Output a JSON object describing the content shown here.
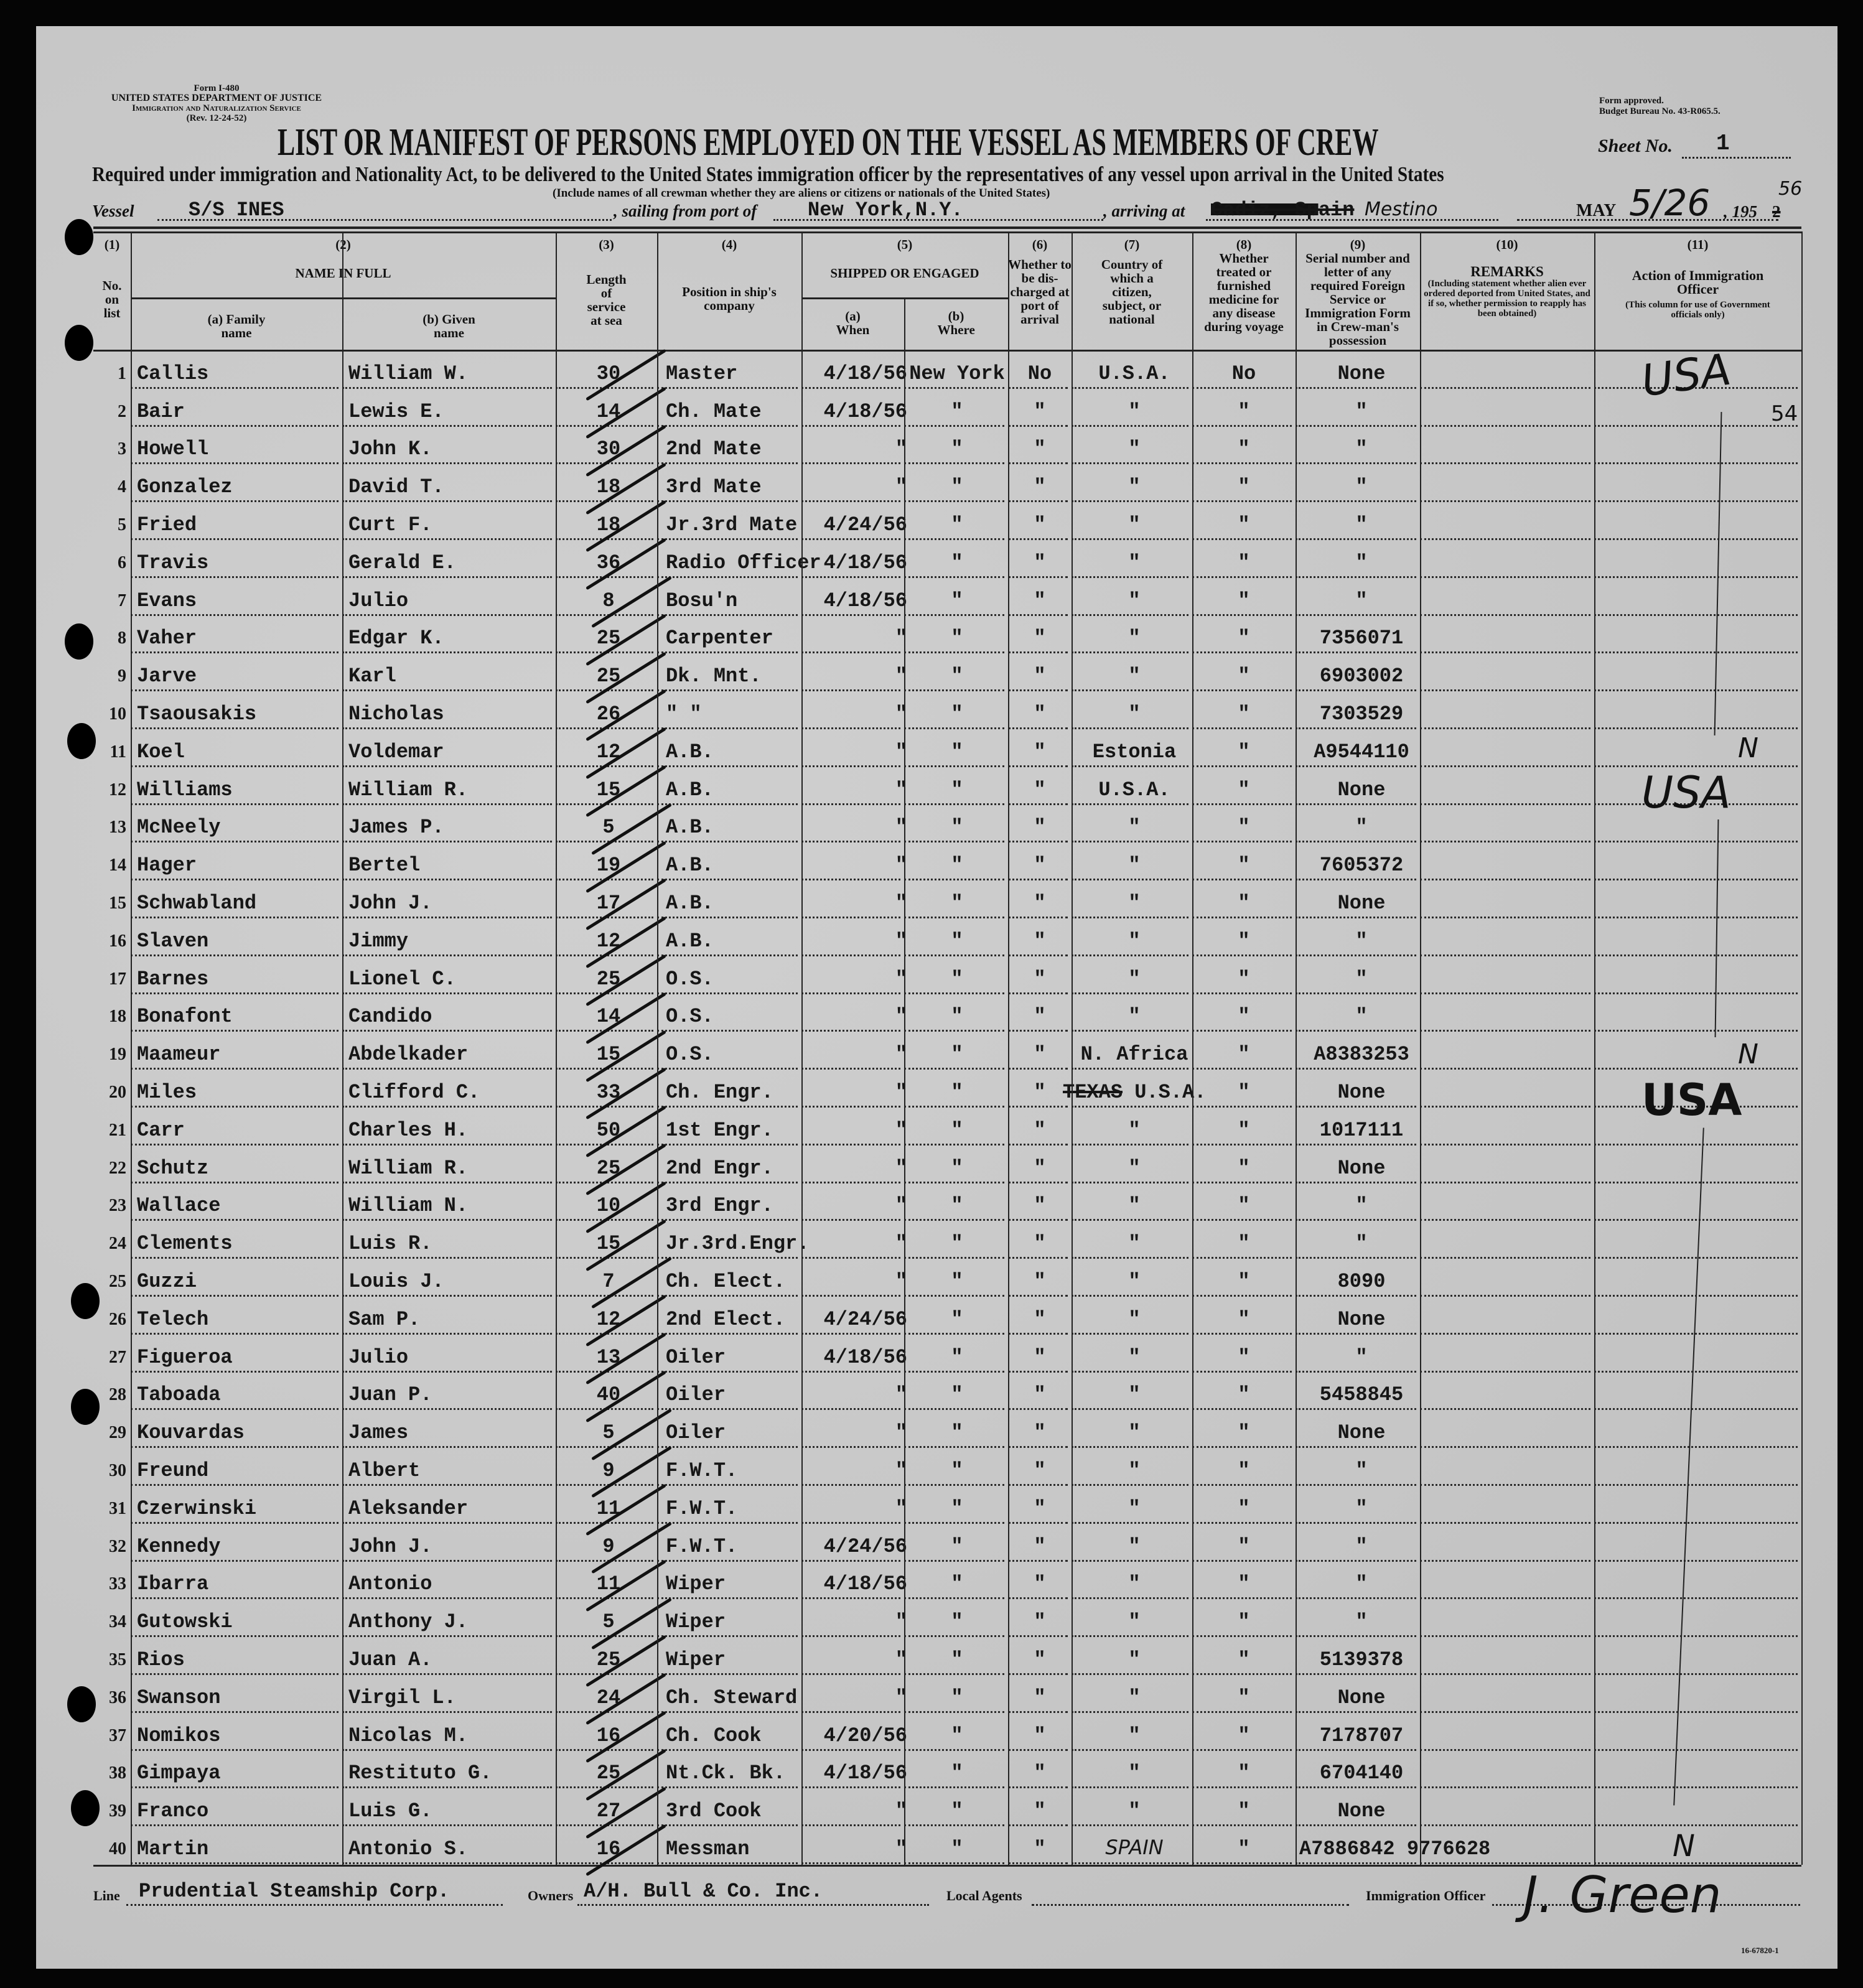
{
  "form": {
    "form_no": "Form I-480",
    "dept": "UNITED STATES DEPARTMENT OF JUSTICE",
    "service": "Immigration and Naturalization Service",
    "rev": "(Rev. 12-24-52)",
    "approved": "Form approved.",
    "budget": "Budget Bureau No. 43-R065.5.",
    "title": "LIST OR MANIFEST OF PERSONS EMPLOYED ON THE VESSEL AS MEMBERS OF CREW",
    "sheet_label": "Sheet No.",
    "sheet_no": "1",
    "subtitle": "Required under immigration and Nationality Act, to be delivered to the United States immigration officer by the representatives of any vessel upon arrival in the United States",
    "include_note": "(Include names of all crewman whether they are aliens or citizens or nationals of the United States)"
  },
  "voyage": {
    "vessel_label": "Vessel",
    "vessel": "S/S INES",
    "sailing_label": ", sailing from port of",
    "port": "New York,N.Y.",
    "arriving_label": ", arriving at",
    "arriving_struck": "Cadiz, Spain",
    "arriving_hand": "Mestino",
    "month": "MAY",
    "day_hand": "5/26",
    "year_prefix": ", 195",
    "year_typed": "2",
    "year_hand": "56"
  },
  "columns": {
    "c1_num": "(1)",
    "c1": "No. on list",
    "c2_num": "(2)",
    "c2": "NAME IN FULL",
    "c2a": "(a) Family name",
    "c2b": "(b) Given name",
    "c3_num": "(3)",
    "c3": "Length of service at sea",
    "c4_num": "(4)",
    "c4": "Position in ship's company",
    "c5_num": "(5)",
    "c5": "SHIPPED OR ENGAGED",
    "c5a": "(a) When",
    "c5b": "(b) Where",
    "c6_num": "(6)",
    "c6": "Whether to be dis-charged at port of arrival",
    "c7_num": "(7)",
    "c7": "Country of which a citizen, subject, or national",
    "c8_num": "(8)",
    "c8": "Whether treated or furnished medicine for any disease during voyage",
    "c9_num": "(9)",
    "c9": "Serial number and letter of any required Foreign Service or Immigration Form in Crew-man's possession",
    "c10_num": "(10)",
    "c10": "REMARKS",
    "c10_note": "(Including statement whether alien ever ordered deported from United States, and if so, whether permission to reapply has been obtained)",
    "c11_num": "(11)",
    "c11": "Action of Immigration Officer",
    "c11_note": "(This column for use of Government officials only)"
  },
  "rows": [
    {
      "no": "1",
      "family": "Callis",
      "given": "William W.",
      "length": "30",
      "position": "Master",
      "when": "4/18/56",
      "where": "New York",
      "disch": "No",
      "country": "U.S.A.",
      "treated": "No",
      "serial": "None"
    },
    {
      "no": "2",
      "family": "Bair",
      "given": "Lewis E.",
      "length": "14",
      "position": "Ch. Mate",
      "when": "4/18/56",
      "where": "\"",
      "disch": "\"",
      "country": "\"",
      "treated": "\"",
      "serial": "\""
    },
    {
      "no": "3",
      "family": "Howell",
      "given": "John K.",
      "length": "30",
      "position": "2nd Mate",
      "when": "\"",
      "where": "\"",
      "disch": "\"",
      "country": "\"",
      "treated": "\"",
      "serial": "\""
    },
    {
      "no": "4",
      "family": "Gonzalez",
      "given": "David T.",
      "length": "18",
      "position": "3rd Mate",
      "when": "\"",
      "where": "\"",
      "disch": "\"",
      "country": "\"",
      "treated": "\"",
      "serial": "\""
    },
    {
      "no": "5",
      "family": "Fried",
      "given": "Curt F.",
      "length": "18",
      "position": "Jr.3rd Mate",
      "when": "4/24/56",
      "where": "\"",
      "disch": "\"",
      "country": "\"",
      "treated": "\"",
      "serial": "\""
    },
    {
      "no": "6",
      "family": "Travis",
      "given": "Gerald E.",
      "length": "36",
      "position": "Radio Officer",
      "when": "4/18/56",
      "where": "\"",
      "disch": "\"",
      "country": "\"",
      "treated": "\"",
      "serial": "\""
    },
    {
      "no": "7",
      "family": "Evans",
      "given": "Julio",
      "length": "8",
      "position": "Bosu'n",
      "when": "4/18/56",
      "where": "\"",
      "disch": "\"",
      "country": "\"",
      "treated": "\"",
      "serial": "\""
    },
    {
      "no": "8",
      "family": "Vaher",
      "given": "Edgar K.",
      "length": "25",
      "position": "Carpenter",
      "when": "\"",
      "where": "\"",
      "disch": "\"",
      "country": "\"",
      "treated": "\"",
      "serial": "7356071"
    },
    {
      "no": "9",
      "family": "Jarve",
      "given": "Karl",
      "length": "25",
      "position": "Dk. Mnt.",
      "when": "\"",
      "where": "\"",
      "disch": "\"",
      "country": "\"",
      "treated": "\"",
      "serial": "6903002"
    },
    {
      "no": "10",
      "family": "Tsaousakis",
      "given": "Nicholas",
      "length": "26",
      "position": "\"   \"",
      "when": "\"",
      "where": "\"",
      "disch": "\"",
      "country": "\"",
      "treated": "\"",
      "serial": "7303529"
    },
    {
      "no": "11",
      "family": "Koel",
      "given": "Voldemar",
      "length": "12",
      "position": "A.B.",
      "when": "\"",
      "where": "\"",
      "disch": "\"",
      "country": "Estonia",
      "treated": "\"",
      "serial": "A9544110"
    },
    {
      "no": "12",
      "family": "Williams",
      "given": "William R.",
      "length": "15",
      "position": "A.B.",
      "when": "\"",
      "where": "\"",
      "disch": "\"",
      "country": "U.S.A.",
      "treated": "\"",
      "serial": "None"
    },
    {
      "no": "13",
      "family": "McNeely",
      "given": "James P.",
      "length": "5",
      "position": "A.B.",
      "when": "\"",
      "where": "\"",
      "disch": "\"",
      "country": "\"",
      "treated": "\"",
      "serial": "\""
    },
    {
      "no": "14",
      "family": "Hager",
      "given": "Bertel",
      "length": "19",
      "position": "A.B.",
      "when": "\"",
      "where": "\"",
      "disch": "\"",
      "country": "\"",
      "treated": "\"",
      "serial": "7605372"
    },
    {
      "no": "15",
      "family": "Schwabland",
      "given": "John J.",
      "length": "17",
      "position": "A.B.",
      "when": "\"",
      "where": "\"",
      "disch": "\"",
      "country": "\"",
      "treated": "\"",
      "serial": "None"
    },
    {
      "no": "16",
      "family": "Slaven",
      "given": "Jimmy",
      "length": "12",
      "position": "A.B.",
      "when": "\"",
      "where": "\"",
      "disch": "\"",
      "country": "\"",
      "treated": "\"",
      "serial": "\""
    },
    {
      "no": "17",
      "family": "Barnes",
      "given": "Lionel C.",
      "length": "25",
      "position": "O.S.",
      "when": "\"",
      "where": "\"",
      "disch": "\"",
      "country": "\"",
      "treated": "\"",
      "serial": "\""
    },
    {
      "no": "18",
      "family": "Bonafont",
      "given": "Candido",
      "length": "14",
      "position": "O.S.",
      "when": "\"",
      "where": "\"",
      "disch": "\"",
      "country": "\"",
      "treated": "\"",
      "serial": "\""
    },
    {
      "no": "19",
      "family": "Maameur",
      "given": "Abdelkader",
      "length": "15",
      "position": "O.S.",
      "when": "\"",
      "where": "\"",
      "disch": "\"",
      "country": "N. Africa",
      "treated": "\"",
      "serial": "A8383253"
    },
    {
      "no": "20",
      "family": "Miles",
      "given": "Clifford C.",
      "length": "33",
      "position": "Ch. Engr.",
      "when": "\"",
      "where": "\"",
      "disch": "\"",
      "country": "U.S.A.",
      "country_struck": "TEXAS",
      "treated": "\"",
      "serial": "None"
    },
    {
      "no": "21",
      "family": "Carr",
      "given": "Charles H.",
      "length": "50",
      "position": "1st Engr.",
      "when": "\"",
      "where": "\"",
      "disch": "\"",
      "country": "\"",
      "treated": "\"",
      "serial": "1017111"
    },
    {
      "no": "22",
      "family": "Schutz",
      "given": "William R.",
      "length": "25",
      "position": "2nd Engr.",
      "when": "\"",
      "where": "\"",
      "disch": "\"",
      "country": "\"",
      "treated": "\"",
      "serial": "None"
    },
    {
      "no": "23",
      "family": "Wallace",
      "given": "William N.",
      "length": "10",
      "position": "3rd Engr.",
      "when": "\"",
      "where": "\"",
      "disch": "\"",
      "country": "\"",
      "treated": "\"",
      "serial": "\""
    },
    {
      "no": "24",
      "family": "Clements",
      "given": "Luis R.",
      "length": "15",
      "position": "Jr.3rd.Engr.",
      "when": "\"",
      "where": "\"",
      "disch": "\"",
      "country": "\"",
      "treated": "\"",
      "serial": "\""
    },
    {
      "no": "25",
      "family": "Guzzi",
      "given": "Louis J.",
      "length": "7",
      "position": "Ch. Elect.",
      "when": "\"",
      "where": "\"",
      "disch": "\"",
      "country": "\"",
      "treated": "\"",
      "serial": "8090"
    },
    {
      "no": "26",
      "family": "Telech",
      "given": "Sam P.",
      "length": "12",
      "position": "2nd Elect.",
      "when": "4/24/56",
      "where": "\"",
      "disch": "\"",
      "country": "\"",
      "treated": "\"",
      "serial": "None"
    },
    {
      "no": "27",
      "family": "Figueroa",
      "given": "Julio",
      "length": "13",
      "position": "Oiler",
      "when": "4/18/56",
      "where": "\"",
      "disch": "\"",
      "country": "\"",
      "treated": "\"",
      "serial": "\""
    },
    {
      "no": "28",
      "family": "Taboada",
      "given": "Juan P.",
      "length": "40",
      "position": "Oiler",
      "when": "\"",
      "where": "\"",
      "disch": "\"",
      "country": "\"",
      "treated": "\"",
      "serial": "5458845"
    },
    {
      "no": "29",
      "family": "Kouvardas",
      "given": "James",
      "length": "5",
      "position": "Oiler",
      "when": "\"",
      "where": "\"",
      "disch": "\"",
      "country": "\"",
      "treated": "\"",
      "serial": "None"
    },
    {
      "no": "30",
      "family": "Freund",
      "given": "Albert",
      "length": "9",
      "position": "F.W.T.",
      "when": "\"",
      "where": "\"",
      "disch": "\"",
      "country": "\"",
      "treated": "\"",
      "serial": "\""
    },
    {
      "no": "31",
      "family": "Czerwinski",
      "given": "Aleksander",
      "length": "11",
      "position": "F.W.T.",
      "when": "\"",
      "where": "\"",
      "disch": "\"",
      "country": "\"",
      "treated": "\"",
      "serial": "\""
    },
    {
      "no": "32",
      "family": "Kennedy",
      "given": "John J.",
      "length": "9",
      "position": "F.W.T.",
      "when": "4/24/56",
      "where": "\"",
      "disch": "\"",
      "country": "\"",
      "treated": "\"",
      "serial": "\""
    },
    {
      "no": "33",
      "family": "Ibarra",
      "given": "Antonio",
      "length": "11",
      "position": "Wiper",
      "when": "4/18/56",
      "where": "\"",
      "disch": "\"",
      "country": "\"",
      "treated": "\"",
      "serial": "\""
    },
    {
      "no": "34",
      "family": "Gutowski",
      "given": "Anthony J.",
      "length": "5",
      "position": "Wiper",
      "when": "\"",
      "where": "\"",
      "disch": "\"",
      "country": "\"",
      "treated": "\"",
      "serial": "\""
    },
    {
      "no": "35",
      "family": "Rios",
      "given": "Juan A.",
      "length": "25",
      "position": "Wiper",
      "when": "\"",
      "where": "\"",
      "disch": "\"",
      "country": "\"",
      "treated": "\"",
      "serial": "5139378"
    },
    {
      "no": "36",
      "family": "Swanson",
      "given": "Virgil L.",
      "length": "24",
      "position": "Ch. Steward",
      "when": "\"",
      "where": "\"",
      "disch": "\"",
      "country": "\"",
      "treated": "\"",
      "serial": "None"
    },
    {
      "no": "37",
      "family": "Nomikos",
      "given": "Nicolas M.",
      "length": "16",
      "position": "Ch. Cook",
      "when": "4/20/56",
      "where": "\"",
      "disch": "\"",
      "country": "\"",
      "treated": "\"",
      "serial": "7178707"
    },
    {
      "no": "38",
      "family": "Gimpaya",
      "given": "Restituto G.",
      "length": "25",
      "position": "Nt.Ck. Bk.",
      "when": "4/18/56",
      "where": "\"",
      "disch": "\"",
      "country": "\"",
      "treated": "\"",
      "serial": "6704140"
    },
    {
      "no": "39",
      "family": "Franco",
      "given": "Luis G.",
      "length": "27",
      "position": "3rd Cook",
      "when": "\"",
      "where": "\"",
      "disch": "\"",
      "country": "\"",
      "treated": "\"",
      "serial": "None"
    },
    {
      "no": "40",
      "family": "Martin",
      "given": "Antonio S.",
      "length": "16",
      "position": "Messman",
      "when": "\"",
      "where": "\"",
      "disch": "\"",
      "country": "SPAIN",
      "treated": "\"",
      "serial": "A7886842",
      "serial2": "9776628"
    }
  ],
  "annotations": {
    "row1_action": "USA",
    "row2_note": "54",
    "row11_action": "N",
    "row12_action": "USA",
    "row19_action": "N",
    "row20_action": "USA",
    "row40_action": "N"
  },
  "footer": {
    "line_label": "Line",
    "line": "Prudential Steamship Corp.",
    "owners_label": "Owners",
    "owners": "A/H. Bull & Co. Inc.",
    "agents_label": "Local Agents",
    "officer_label": "Immigration Officer",
    "officer_signature": "J. Green",
    "print_code": "16-67820-1"
  }
}
